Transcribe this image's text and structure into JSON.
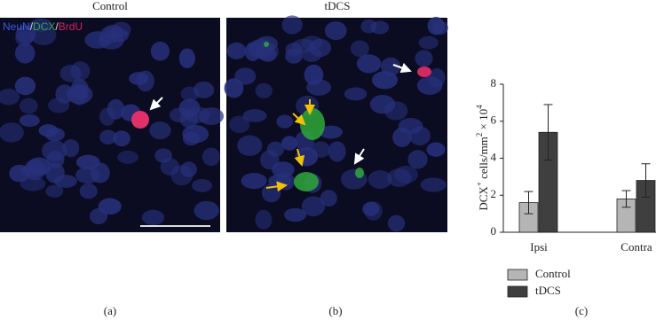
{
  "panels": [
    {
      "label": "(a)",
      "title": "Control",
      "channels": [
        {
          "text": "NeuN",
          "color": "#3a5bd9"
        },
        {
          "text": "/",
          "color": "#dddddd"
        },
        {
          "text": "DCX",
          "color": "#2fa83a"
        },
        {
          "text": "/",
          "color": "#dddddd"
        },
        {
          "text": "BrdU",
          "color": "#d2235f"
        }
      ]
    },
    {
      "label": "(b)",
      "title": "tDCS"
    }
  ],
  "chart_data": {
    "type": "bar",
    "label": "(c)",
    "ylabel_parts": [
      "DCX",
      "+",
      " cells/mm",
      "2",
      " × 10",
      "4"
    ],
    "categories": [
      "Ipsi",
      "Contra"
    ],
    "series": [
      {
        "name": "Control",
        "color": "#b5b5b5",
        "values": [
          1.6,
          1.8
        ],
        "errors": [
          0.6,
          0.45
        ]
      },
      {
        "name": "tDCS",
        "color": "#3f3f3f",
        "values": [
          5.4,
          2.8
        ],
        "errors": [
          1.5,
          0.9
        ]
      }
    ],
    "ylim": [
      0,
      8
    ],
    "yticks": [
      0,
      2,
      4,
      6,
      8
    ]
  }
}
